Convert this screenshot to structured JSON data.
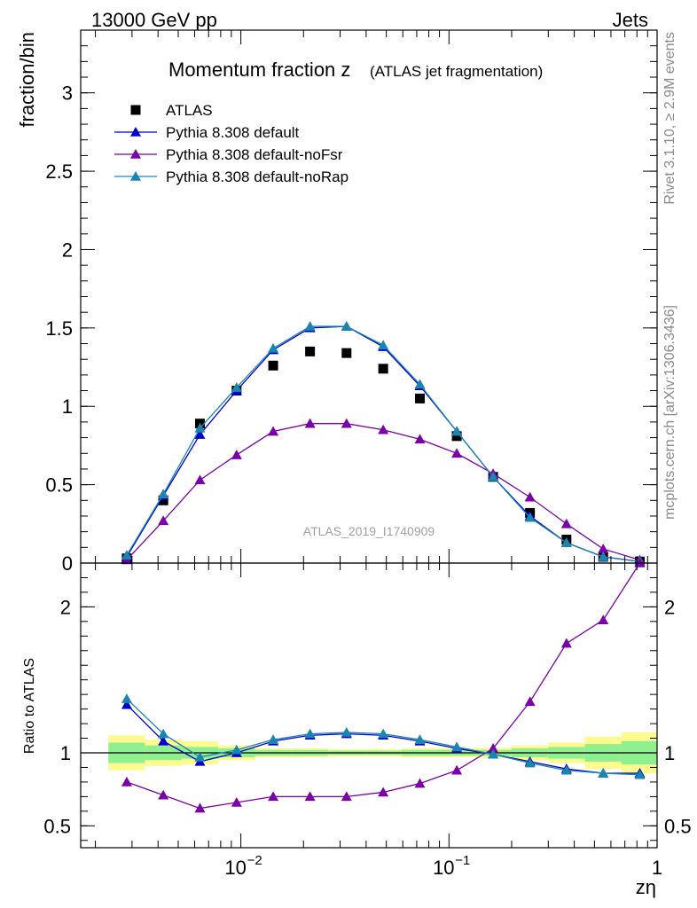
{
  "header": {
    "left": "13000 GeV pp",
    "right": "Jets"
  },
  "title": {
    "main": "Momentum fraction z",
    "sub": "(ATLAS jet fragmentation)"
  },
  "side_labels": {
    "rivet": "Rivet 3.1.10, ≥ 2.9M events",
    "mcplots": "mcplots.cern.ch [arXiv:1306.3436]"
  },
  "watermark": "ATLAS_2019_I1740909",
  "colors": {
    "atlas": "#000000",
    "default": "#0000cc",
    "noFsr": "#7a00a8",
    "noRap": "#1a86b0",
    "band_inner": "#8ef08e",
    "band_outer": "#fdfa8e"
  },
  "chart_data": [
    {
      "type": "scatter",
      "panel": "main",
      "ylabel": "fraction/bin",
      "xscale": "log",
      "xlim": [
        0.0017,
        1.0
      ],
      "ylim": [
        0,
        3.4
      ],
      "yticks": [
        0,
        0.5,
        1,
        1.5,
        2,
        2.5,
        3
      ],
      "ytick_labels": [
        "0",
        "0.5",
        "1",
        "1.5",
        "2",
        "2.5",
        "3"
      ],
      "legend_position": "top-left",
      "x": [
        0.00283,
        0.00424,
        0.00636,
        0.00954,
        0.0143,
        0.0215,
        0.0322,
        0.0483,
        0.0725,
        0.109,
        0.163,
        0.245,
        0.367,
        0.551,
        0.826
      ],
      "series": [
        {
          "name": "ATLAS",
          "marker": "square",
          "line": false,
          "values": [
            0.03,
            0.4,
            0.89,
            1.1,
            1.26,
            1.35,
            1.34,
            1.24,
            1.05,
            0.81,
            0.55,
            0.32,
            0.15,
            0.04,
            0.01
          ]
        },
        {
          "name": "Pythia 8.308 default",
          "marker": "triangle",
          "line": true,
          "values": [
            0.04,
            0.43,
            0.82,
            1.1,
            1.36,
            1.5,
            1.51,
            1.38,
            1.13,
            0.84,
            0.55,
            0.3,
            0.13,
            0.04,
            0.01
          ]
        },
        {
          "name": "Pythia 8.308 default-noFsr",
          "marker": "triangle",
          "line": true,
          "values": [
            0.02,
            0.27,
            0.53,
            0.69,
            0.84,
            0.89,
            0.89,
            0.85,
            0.79,
            0.7,
            0.57,
            0.42,
            0.25,
            0.09,
            0.02
          ]
        },
        {
          "name": "Pythia 8.308 default-noRap",
          "marker": "triangle",
          "line": true,
          "values": [
            0.05,
            0.44,
            0.86,
            1.12,
            1.37,
            1.51,
            1.51,
            1.39,
            1.14,
            0.84,
            0.55,
            0.29,
            0.13,
            0.04,
            0.01
          ]
        }
      ]
    },
    {
      "type": "line",
      "panel": "ratio",
      "ylabel": "Ratio to ATLAS",
      "xlabel": "zη",
      "xscale": "log",
      "xlim": [
        0.0017,
        1.0
      ],
      "ylim": [
        0.35,
        2.3
      ],
      "yticks": [
        0.5,
        1,
        2
      ],
      "ytick_labels": [
        "0.5",
        "1",
        "2"
      ],
      "xtick_major": [
        0.01,
        0.1,
        1
      ],
      "xtick_labels": [
        "10",
        "10",
        "1"
      ],
      "xtick_exponents": [
        "−2",
        "−1",
        ""
      ],
      "x": [
        0.00283,
        0.00424,
        0.00636,
        0.00954,
        0.0143,
        0.0215,
        0.0322,
        0.0483,
        0.0725,
        0.109,
        0.163,
        0.245,
        0.367,
        0.551,
        0.826
      ],
      "bins": [
        [
          0.00231,
          0.00346
        ],
        [
          0.00346,
          0.00519
        ],
        [
          0.00519,
          0.00779
        ],
        [
          0.00779,
          0.0117
        ],
        [
          0.0117,
          0.0175
        ],
        [
          0.0175,
          0.0263
        ],
        [
          0.0263,
          0.0394
        ],
        [
          0.0394,
          0.0591
        ],
        [
          0.0591,
          0.0887
        ],
        [
          0.0887,
          0.133
        ],
        [
          0.133,
          0.2
        ],
        [
          0.2,
          0.3
        ],
        [
          0.3,
          0.45
        ],
        [
          0.45,
          0.675
        ],
        [
          0.675,
          1.0
        ]
      ],
      "band_inner": [
        0.07,
        0.05,
        0.04,
        0.03,
        0.02,
        0.02,
        0.015,
        0.015,
        0.02,
        0.02,
        0.02,
        0.03,
        0.04,
        0.06,
        0.08
      ],
      "band_outer": [
        0.12,
        0.09,
        0.08,
        0.05,
        0.03,
        0.03,
        0.025,
        0.025,
        0.03,
        0.03,
        0.035,
        0.05,
        0.07,
        0.11,
        0.14
      ],
      "series": [
        {
          "name": "Pythia 8.308 default",
          "values": [
            1.33,
            1.08,
            0.94,
            1.0,
            1.08,
            1.12,
            1.13,
            1.12,
            1.08,
            1.03,
            0.99,
            0.94,
            0.89,
            0.86,
            0.86
          ]
        },
        {
          "name": "Pythia 8.308 default-noFsr",
          "values": [
            0.8,
            0.71,
            0.62,
            0.66,
            0.7,
            0.7,
            0.7,
            0.73,
            0.79,
            0.88,
            1.03,
            1.35,
            1.75,
            1.91,
            2.3
          ]
        },
        {
          "name": "Pythia 8.308 default-noRap",
          "values": [
            1.37,
            1.13,
            0.97,
            1.02,
            1.09,
            1.13,
            1.14,
            1.13,
            1.09,
            1.04,
            0.99,
            0.93,
            0.88,
            0.86,
            0.85
          ]
        }
      ]
    }
  ]
}
